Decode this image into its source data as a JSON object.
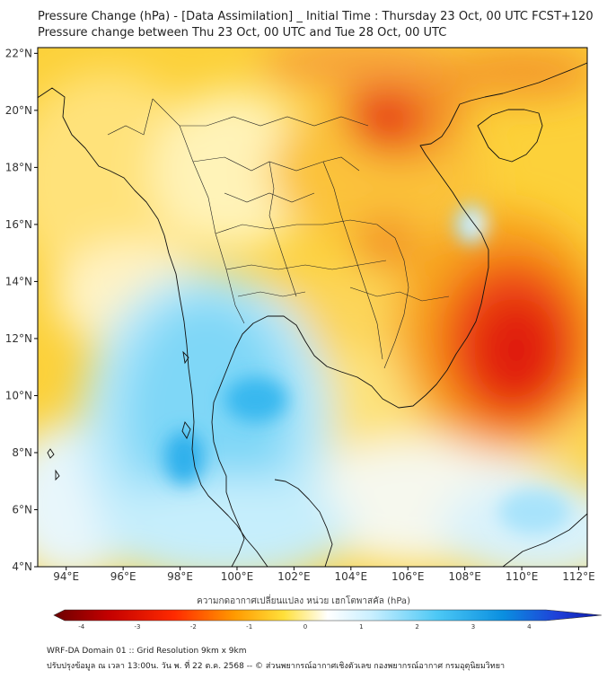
{
  "title": {
    "line1": "Pressure Change (hPa) - [Data Assimilation] _ Initial Time : Thursday 23 Oct, 00 UTC FCST+120",
    "line2": "Pressure change between Thu 23 Oct, 00 UTC and Tue 28 Oct, 00 UTC"
  },
  "map": {
    "lat_labels": [
      "22°N",
      "20°N",
      "18°N",
      "16°N",
      "14°N",
      "12°N",
      "10°N",
      "8°N",
      "6°N",
      "4°N"
    ],
    "lon_labels": [
      "94°E",
      "96°E",
      "98°E",
      "100°E",
      "102°E",
      "104°E",
      "106°E",
      "108°E",
      "110°E",
      "112°E"
    ],
    "lat_values": [
      22,
      20,
      18,
      16,
      14,
      12,
      10,
      8,
      6,
      4
    ],
    "lon_values": [
      94,
      96,
      98,
      100,
      102,
      104,
      106,
      108,
      110,
      112
    ],
    "lon_range": [
      93,
      112.3
    ],
    "lat_range": [
      4,
      22.2
    ],
    "regions": [
      {
        "name": "pressure-fall-south-china-sea",
        "lon": 109.3,
        "lat": 11.2,
        "value": -2.2
      },
      {
        "name": "pressure-fall-gulf-of-tonkin",
        "lon": 105.6,
        "lat": 19.3,
        "value": -1.8
      },
      {
        "name": "pressure-fall-northeast-thailand",
        "lon": 106.0,
        "lat": 15.0,
        "value": -1.4
      },
      {
        "name": "pressure-rise-andaman-sea",
        "lon": 98.6,
        "lat": 8.5,
        "value": 1.9
      },
      {
        "name": "pressure-rise-gulf-of-thailand",
        "lon": 100.8,
        "lat": 9.8,
        "value": 1.8
      },
      {
        "name": "pressure-rise-central-vietnam-coast",
        "lon": 108.3,
        "lat": 16.0,
        "value": 1.1
      },
      {
        "name": "pressure-rise-south-south-china-sea",
        "lon": 109.5,
        "lat": 5.8,
        "value": 0.9
      }
    ]
  },
  "colorbar": {
    "ticks": [
      "-4",
      "-3",
      "-2",
      "-1",
      "0",
      "1",
      "2",
      "3",
      "4"
    ],
    "tick_values": [
      -4,
      -3,
      -2,
      -1,
      0,
      1,
      2,
      3,
      4
    ],
    "range": [
      -4.3,
      4.3
    ],
    "label": "ความกดอากาศเปลี่ยนแปลง หน่วย เฮกโตพาสคัล (hPa)"
  },
  "footer": {
    "line1": "WRF-DA Domain 01 :: Grid Resolution 9km x 9km",
    "line2": "ปรับปรุงข้อมูล ณ เวลา 13:00น. วัน พ. ที่ 22 ต.ค. 2568 -- © ส่วนพยากรณ์อากาศเชิงตัวเลข กองพยากรณ์อากาศ กรมอุตุนิยมวิทยา"
  },
  "colors": {
    "strong_fall": "#e01d10",
    "fall": "#f79a0d",
    "weak_fall": "#fde03a",
    "neutral": "#ffffff",
    "rise": "#7fd7f7",
    "strong_rise": "#1ea6e8",
    "border": "#111111"
  }
}
